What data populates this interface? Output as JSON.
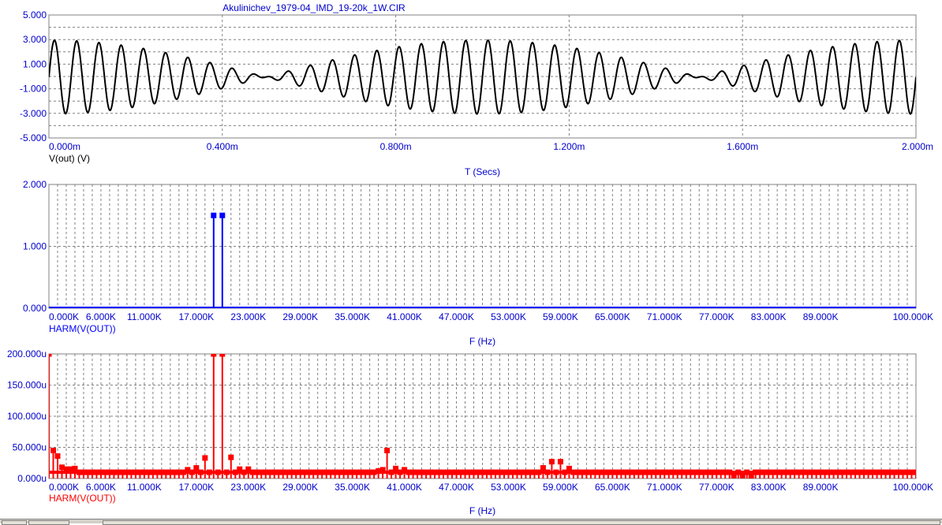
{
  "window_title": "Akulinichev_1979-04_IMD_19-20k_1W.CIR",
  "colors": {
    "background": "#ffffff",
    "axis_text": "#0000cc",
    "grid": "#808080",
    "frame": "#808080",
    "panel1_trace": "#000000",
    "panel2_trace": "#0000ff",
    "panel3_trace": "#ff0000"
  },
  "chart_data": [
    {
      "id": "transient",
      "type": "line",
      "title": "Akulinichev_1979-04_IMD_19-20k_1W.CIR",
      "trace_label": "V(out) (V)",
      "xlabel": "T (Secs)",
      "xlim": [
        0,
        0.002
      ],
      "ylim": [
        -5,
        5
      ],
      "xticks": [
        0,
        0.0004,
        0.0008,
        0.0012,
        0.0016,
        0.002
      ],
      "xtick_labels": [
        "0.000m",
        "0.400m",
        "0.800m",
        "1.200m",
        "1.600m",
        "2.000m"
      ],
      "yticks": [
        5,
        3,
        1,
        -1,
        -3,
        -5
      ],
      "ytick_labels": [
        "5.000",
        "3.000",
        "1.000",
        "-1.000",
        "-3.000",
        "-5.000"
      ],
      "x_grid_major": [
        0,
        0.0004,
        0.0008,
        0.0012,
        0.0016,
        0.002
      ],
      "y_grid": [
        5,
        4,
        3,
        2,
        1,
        0,
        -1,
        -2,
        -3,
        -4,
        -5
      ],
      "series": [
        {
          "component_freqs_hz": [
            19000,
            20000
          ],
          "component_amplitudes": [
            1.5,
            1.5
          ],
          "offset": -0.05
        }
      ]
    },
    {
      "id": "spectrum_linear",
      "type": "bar",
      "trace_label": "HARM(V(OUT))",
      "xlabel": "F (Hz)",
      "xlim": [
        0,
        100000
      ],
      "ylim": [
        0,
        2
      ],
      "xtick_values": [
        0,
        6000,
        11000,
        17000,
        23000,
        29000,
        35000,
        41000,
        47000,
        53000,
        59000,
        65000,
        71000,
        77000,
        83000,
        89000,
        100000
      ],
      "xtick_labels": [
        "0.000K",
        "6.000K",
        "11.000K",
        "17.000K",
        "23.000K",
        "29.000K",
        "35.000K",
        "41.000K",
        "47.000K",
        "53.000K",
        "59.000K",
        "65.000K",
        "71.000K",
        "77.000K",
        "83.000K",
        "89.000K",
        "100.000K"
      ],
      "yticks": [
        2,
        1,
        0
      ],
      "ytick_labels": [
        "2.000",
        "1.000",
        "0.000"
      ],
      "y_grid": [
        2,
        1,
        0
      ],
      "x_grid_step": 1000,
      "bin_step": 500,
      "baseline": 0.0,
      "peaks": [
        {
          "f": 19000,
          "v": 1.5
        },
        {
          "f": 20000,
          "v": 1.5
        }
      ]
    },
    {
      "id": "spectrum_zoom",
      "type": "bar",
      "trace_label": "HARM(V(OUT))",
      "xlabel": "F (Hz)",
      "xlim": [
        0,
        100000
      ],
      "ylim": [
        0,
        0.0002
      ],
      "xtick_values": [
        0,
        6000,
        11000,
        17000,
        23000,
        29000,
        35000,
        41000,
        47000,
        53000,
        59000,
        65000,
        71000,
        77000,
        83000,
        89000,
        100000
      ],
      "xtick_labels": [
        "0.000K",
        "6.000K",
        "11.000K",
        "17.000K",
        "23.000K",
        "29.000K",
        "35.000K",
        "41.000K",
        "47.000K",
        "53.000K",
        "59.000K",
        "65.000K",
        "71.000K",
        "77.000K",
        "83.000K",
        "89.000K",
        "100.000K"
      ],
      "yticks": [
        0.0002,
        0.00015,
        0.0001,
        5e-05,
        0
      ],
      "ytick_labels": [
        "200.000u",
        "150.000u",
        "100.000u",
        "50.000u",
        "0.000u"
      ],
      "y_grid": [
        0.0002,
        0.00015,
        0.0001,
        5e-05,
        0
      ],
      "x_grid_step": 1000,
      "bin_step": 500,
      "baseline": 1e-05,
      "peaks": [
        {
          "f": 0,
          "v": 0.0002
        },
        {
          "f": 500,
          "v": 4.5e-05
        },
        {
          "f": 1000,
          "v": 3.6e-05
        },
        {
          "f": 1500,
          "v": 1.8e-05
        },
        {
          "f": 2000,
          "v": 1.5e-05
        },
        {
          "f": 2500,
          "v": 1.5e-05
        },
        {
          "f": 3000,
          "v": 1.6e-05
        },
        {
          "f": 16000,
          "v": 1.4e-05
        },
        {
          "f": 17000,
          "v": 1.7e-05
        },
        {
          "f": 18000,
          "v": 3.3e-05
        },
        {
          "f": 19000,
          "v": 0.0002
        },
        {
          "f": 20000,
          "v": 0.0002
        },
        {
          "f": 21000,
          "v": 3.4e-05
        },
        {
          "f": 22000,
          "v": 1.5e-05
        },
        {
          "f": 23000,
          "v": 1.5e-05
        },
        {
          "f": 38000,
          "v": 1.2e-05
        },
        {
          "f": 38500,
          "v": 1.4e-05
        },
        {
          "f": 39000,
          "v": 4.5e-05
        },
        {
          "f": 40000,
          "v": 1.6e-05
        },
        {
          "f": 41000,
          "v": 1.4e-05
        },
        {
          "f": 57000,
          "v": 1.7e-05
        },
        {
          "f": 58000,
          "v": 2.7e-05
        },
        {
          "f": 59000,
          "v": 2.7e-05
        },
        {
          "f": 60000,
          "v": 1.6e-05
        },
        {
          "f": 79000,
          "v": 5e-06
        },
        {
          "f": 80000,
          "v": 5e-06
        },
        {
          "f": 81000,
          "v": 4e-06
        }
      ]
    }
  ]
}
